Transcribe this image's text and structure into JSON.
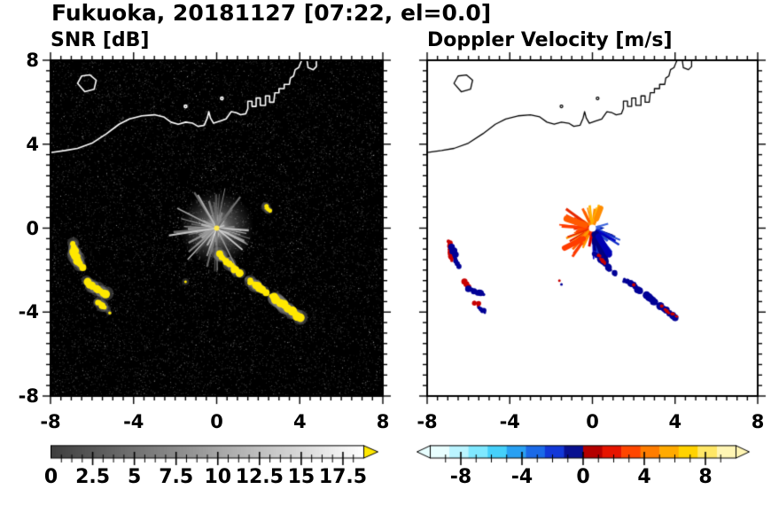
{
  "title": "Fukuoka, 20181127 [07:22, el=0.0]",
  "panels": {
    "snr": {
      "label": "SNR [dB]"
    },
    "vel": {
      "label": "Doppler Velocity [m/s]"
    }
  },
  "axes": {
    "xlim": [
      -8,
      8
    ],
    "ylim": [
      -8,
      8
    ],
    "major_tick_values": [
      -8,
      -4,
      0,
      4,
      8
    ],
    "minor_tick_step": 0.5,
    "x_tick_labels": [
      "-8",
      "-4",
      "0",
      "4",
      "8"
    ],
    "y_tick_labels": [
      "8",
      "4",
      "0",
      "-4",
      "-8"
    ]
  },
  "colorbars": {
    "snr": {
      "range": [
        0,
        18.75
      ],
      "labels": [
        "0",
        "2.5",
        "5",
        "7.5",
        "10",
        "12.5",
        "15",
        "17.5"
      ],
      "label_values": [
        0,
        2.5,
        5,
        7.5,
        10,
        12.5,
        15,
        17.5
      ],
      "minor_tick_step": 0.625,
      "major_tick_step": 2.5,
      "type": "grayscale",
      "start_color": "#000000",
      "end_color": "#ffffff",
      "overflow_arrow_color": "#ffe800"
    },
    "vel": {
      "range": [
        -10,
        10
      ],
      "labels": [
        "-8",
        "-4",
        "0",
        "4",
        "8"
      ],
      "label_values": [
        -8,
        -4,
        0,
        4,
        8
      ],
      "minor_tick_step": 1,
      "major_tick_step": 4,
      "segments": [
        "#e8feff",
        "#baf4ff",
        "#7fe8ff",
        "#45d0fa",
        "#28a0f2",
        "#1b6ae8",
        "#1238d8",
        "#081090",
        "#b40000",
        "#e61400",
        "#ff4600",
        "#ff7d00",
        "#ffaa00",
        "#ffd200",
        "#ffe766",
        "#fff5b4"
      ],
      "underflow_arrow_color": "#e8feff",
      "overflow_arrow_color": "#fff5b4"
    }
  },
  "coastline": {
    "main": [
      [
        -8.0,
        3.6
      ],
      [
        -7.3,
        3.7
      ],
      [
        -6.7,
        3.8
      ],
      [
        -6.0,
        4.05
      ],
      [
        -5.3,
        4.5
      ],
      [
        -4.7,
        4.95
      ],
      [
        -4.2,
        5.2
      ],
      [
        -3.6,
        5.35
      ],
      [
        -3.0,
        5.4
      ],
      [
        -2.55,
        5.3
      ],
      [
        -2.2,
        5.05
      ],
      [
        -1.85,
        4.95
      ],
      [
        -1.5,
        5.05
      ],
      [
        -1.15,
        5.0
      ],
      [
        -0.9,
        4.85
      ],
      [
        -0.6,
        4.9
      ],
      [
        -0.45,
        5.25
      ],
      [
        -0.38,
        5.55
      ],
      [
        -0.3,
        5.25
      ],
      [
        -0.15,
        5.0
      ],
      [
        0.15,
        5.1
      ],
      [
        0.45,
        5.2
      ],
      [
        0.7,
        5.55
      ],
      [
        0.95,
        5.5
      ],
      [
        1.15,
        5.4
      ],
      [
        1.4,
        5.45
      ],
      [
        1.5,
        5.7
      ],
      [
        1.5,
        6.05
      ],
      [
        1.7,
        6.05
      ],
      [
        1.7,
        5.8
      ],
      [
        1.9,
        5.8
      ],
      [
        1.9,
        6.2
      ],
      [
        2.1,
        6.2
      ],
      [
        2.1,
        5.85
      ],
      [
        2.35,
        5.85
      ],
      [
        2.35,
        6.3
      ],
      [
        2.55,
        6.3
      ],
      [
        2.55,
        6.0
      ],
      [
        2.75,
        6.0
      ],
      [
        2.8,
        6.45
      ],
      [
        3.0,
        6.45
      ],
      [
        3.0,
        6.65
      ],
      [
        3.25,
        6.65
      ],
      [
        3.25,
        6.85
      ],
      [
        3.5,
        6.85
      ],
      [
        3.55,
        7.15
      ],
      [
        3.7,
        7.25
      ],
      [
        3.78,
        7.55
      ],
      [
        3.95,
        7.65
      ],
      [
        4.05,
        7.9
      ],
      [
        4.1,
        8.0
      ]
    ],
    "island": [
      [
        -6.7,
        6.9
      ],
      [
        -6.5,
        7.25
      ],
      [
        -6.1,
        7.3
      ],
      [
        -5.8,
        7.05
      ],
      [
        -5.9,
        6.62
      ],
      [
        -6.35,
        6.5
      ]
    ],
    "islet": [
      [
        4.35,
        8.0
      ],
      [
        4.4,
        7.65
      ],
      [
        4.65,
        7.55
      ],
      [
        4.8,
        7.7
      ],
      [
        4.8,
        8.0
      ]
    ],
    "dots": [
      [
        -1.5,
        5.8
      ],
      [
        0.25,
        6.18
      ]
    ]
  },
  "chart_data": [
    {
      "type": "heatmap",
      "panel": "snr",
      "title": "SNR [dB]",
      "xlabel": "",
      "ylabel": "",
      "xlim": [
        -8,
        8
      ],
      "ylim": [
        -8,
        8
      ],
      "units": "dB",
      "colorbar": {
        "range": [
          0,
          18.75
        ],
        "ticks": [
          0,
          2.5,
          5,
          7.5,
          10,
          12.5,
          15,
          17.5
        ],
        "scale": "grayscale",
        "overflow": "#ffe800"
      },
      "description": "Radar PPI of SNR: black noisy background, gray ground-clutter fan at origin, yellow high-SNR echoes west-southwest and along a southeast line, white coastline",
      "features": {
        "origin": {
          "x": 0,
          "y": 0,
          "dot_color": "#ffe84d"
        },
        "clutter_rays": {
          "count": 85,
          "len_km": [
            0.35,
            2.1
          ],
          "seed": 20181127
        },
        "long_rays": [
          {
            "to": [
              -2.3,
              -0.35
            ],
            "color": "#c8c8c8",
            "w": 2
          },
          {
            "to": [
              -1.9,
              0.95
            ],
            "color": "#a0a0a0",
            "w": 1.5
          },
          {
            "to": [
              -1.4,
              -1.5
            ],
            "color": "#b4b4b4",
            "w": 1.5
          },
          {
            "to": [
              0.95,
              -1.9
            ],
            "color": "#969696",
            "w": 1.5
          },
          {
            "to": [
              0.4,
              1.9
            ],
            "color": "#828282",
            "w": 1
          },
          {
            "to": [
              1.6,
              -0.5
            ],
            "color": "#787878",
            "w": 1
          }
        ],
        "echoes": [
          {
            "color": "#ffe800",
            "halo": "#787878",
            "r": 4,
            "points": [
              [
                -6.9,
                -0.7
              ],
              [
                -6.85,
                -1.15
              ],
              [
                -6.7,
                -1.55
              ],
              [
                -6.5,
                -1.85
              ]
            ]
          },
          {
            "color": "#ffe800",
            "halo": "#787878",
            "r": 4,
            "points": [
              [
                -6.25,
                -2.5
              ],
              [
                -5.95,
                -2.8
              ],
              [
                -5.6,
                -3.0
              ],
              [
                -5.3,
                -3.15
              ]
            ]
          },
          {
            "color": "#ffe800",
            "halo": "#707070",
            "r": 3,
            "points": [
              [
                -5.75,
                -3.5
              ],
              [
                -5.45,
                -3.75
              ],
              [
                -5.15,
                -4.0
              ]
            ]
          },
          {
            "color": "#ffe800",
            "halo": "#828282",
            "r": 3.5,
            "points": [
              [
                0.1,
                -1.2
              ],
              [
                0.5,
                -1.6
              ],
              [
                0.85,
                -1.95
              ],
              [
                1.15,
                -2.2
              ]
            ]
          },
          {
            "color": "#ffe800",
            "halo": "#828282",
            "r": 3.5,
            "points": [
              [
                1.5,
                -2.45
              ],
              [
                1.95,
                -2.75
              ],
              [
                2.35,
                -3.05
              ]
            ]
          },
          {
            "color": "#ffe800",
            "halo": "#828282",
            "r": 4,
            "points": [
              [
                2.65,
                -3.25
              ],
              [
                3.05,
                -3.55
              ],
              [
                3.45,
                -3.85
              ],
              [
                3.85,
                -4.15
              ],
              [
                4.05,
                -4.3
              ]
            ]
          },
          {
            "color": "#ffe800",
            "halo": "#646464",
            "r": 2,
            "points": [
              [
                2.35,
                1.05
              ],
              [
                2.55,
                0.8
              ]
            ]
          },
          {
            "color": "#ffe800",
            "halo": "#646464",
            "r": 1.5,
            "points": [
              [
                -1.5,
                -2.55
              ]
            ]
          }
        ]
      }
    },
    {
      "type": "heatmap",
      "panel": "vel",
      "title": "Doppler Velocity [m/s]",
      "xlabel": "",
      "ylabel": "",
      "xlim": [
        -8,
        8
      ],
      "ylim": [
        -8,
        8
      ],
      "units": "m/s",
      "colorbar": {
        "range": [
          -10,
          10
        ],
        "ticks": [
          -8,
          -4,
          0,
          4,
          8
        ]
      },
      "description": "Radar PPI of Doppler velocity: white background, orange/red (positive) rays west and north of origin, navy/blue (negative) rays southeast, red/navy echo arcs west-southwest and along a southeast line, black coastline",
      "features": {
        "origin": {
          "x": 0,
          "y": 0,
          "dot_color": "#ffffff"
        },
        "ray_seed": 424242,
        "fans": [
          {
            "angles": [
              140,
              250
            ],
            "rays": 45,
            "len_km": [
              0.4,
              1.7
            ],
            "colors": [
              "#ff6400",
              "#ff3c00",
              "#ff9600",
              "#e62800"
            ]
          },
          {
            "angles": [
              60,
              130
            ],
            "rays": 14,
            "len_km": [
              0.3,
              1.2
            ],
            "colors": [
              "#ff8c00",
              "#ffb400",
              "#ff5a00"
            ]
          },
          {
            "angles": [
              265,
              345
            ],
            "rays": 40,
            "len_km": [
              0.4,
              1.6
            ],
            "colors": [
              "#000082",
              "#0000c8",
              "#1432c8",
              "#2850d2"
            ]
          },
          {
            "angles": [
              345,
              380
            ],
            "rays": 8,
            "len_km": [
              0.3,
              0.8
            ],
            "colors": [
              "#0a28b4",
              "#3c64dc"
            ]
          },
          {
            "angles": [
              245,
              265
            ],
            "rays": 6,
            "len_km": [
              0.3,
              1.0
            ],
            "colors": [
              "#d20000",
              "#ff3200"
            ]
          }
        ],
        "streaks": [
          {
            "points": [
              [
                0.15,
                -0.3
              ],
              [
                0.45,
                -1.0
              ],
              [
                0.6,
                -1.6
              ]
            ],
            "color": "#000082",
            "w": 9
          },
          {
            "points": [
              [
                0.3,
                -0.4
              ],
              [
                0.8,
                -1.25
              ]
            ],
            "color": "#0000b4",
            "w": 7
          },
          {
            "points": [
              [
                -0.35,
                0.15
              ],
              [
                -1.25,
                0.45
              ]
            ],
            "color": "#ff5a00",
            "w": 7
          },
          {
            "points": [
              [
                -0.45,
                -0.5
              ],
              [
                -1.35,
                -0.95
              ]
            ],
            "color": "#ff3c00",
            "w": 6
          },
          {
            "points": [
              [
                0.2,
                0.45
              ],
              [
                0.4,
                0.95
              ]
            ],
            "color": "#ff8c00",
            "w": 6
          }
        ],
        "echoes": [
          {
            "color": "#c80000",
            "r": 3,
            "points": [
              [
                -6.95,
                -0.65
              ],
              [
                -6.9,
                -1.1
              ],
              [
                -6.78,
                -1.5
              ]
            ]
          },
          {
            "color": "#000096",
            "r": 3,
            "points": [
              [
                -6.8,
                -0.9
              ],
              [
                -6.65,
                -1.4
              ],
              [
                -6.5,
                -1.8
              ]
            ]
          },
          {
            "color": "#c80000",
            "r": 3,
            "points": [
              [
                -6.3,
                -2.45
              ],
              [
                -6.0,
                -2.75
              ]
            ]
          },
          {
            "color": "#000096",
            "r": 3,
            "points": [
              [
                -5.95,
                -2.85
              ],
              [
                -5.6,
                -3.05
              ],
              [
                -5.3,
                -3.2
              ]
            ]
          },
          {
            "color": "#c80000",
            "r": 2.5,
            "points": [
              [
                -5.75,
                -3.5
              ],
              [
                -5.5,
                -3.7
              ]
            ]
          },
          {
            "color": "#000096",
            "r": 2.5,
            "points": [
              [
                -5.45,
                -3.8
              ],
              [
                -5.15,
                -4.0
              ]
            ]
          },
          {
            "color": "#000096",
            "r": 3,
            "points": [
              [
                0.15,
                -1.25
              ],
              [
                0.5,
                -1.6
              ],
              [
                0.85,
                -1.95
              ],
              [
                1.15,
                -2.2
              ]
            ]
          },
          {
            "color": "#c80000",
            "r": 2,
            "points": [
              [
                0.3,
                -1.3
              ],
              [
                0.6,
                -1.7
              ]
            ]
          },
          {
            "color": "#000096",
            "r": 3,
            "points": [
              [
                1.5,
                -2.45
              ],
              [
                1.95,
                -2.75
              ],
              [
                2.35,
                -3.05
              ]
            ]
          },
          {
            "color": "#c80000",
            "r": 2,
            "points": [
              [
                2.0,
                -2.7
              ]
            ]
          },
          {
            "color": "#000096",
            "r": 3.5,
            "points": [
              [
                2.65,
                -3.25
              ],
              [
                3.05,
                -3.55
              ],
              [
                3.45,
                -3.85
              ],
              [
                3.85,
                -4.15
              ],
              [
                4.05,
                -4.3
              ]
            ]
          },
          {
            "color": "#c80000",
            "r": 2,
            "points": [
              [
                3.3,
                -3.7
              ],
              [
                4.1,
                -4.25
              ]
            ]
          },
          {
            "color": "#c80000",
            "r": 1.5,
            "points": [
              [
                -1.6,
                -2.5
              ]
            ]
          },
          {
            "color": "#000096",
            "r": 1.5,
            "points": [
              [
                -1.5,
                -2.68
              ]
            ]
          }
        ]
      }
    }
  ]
}
